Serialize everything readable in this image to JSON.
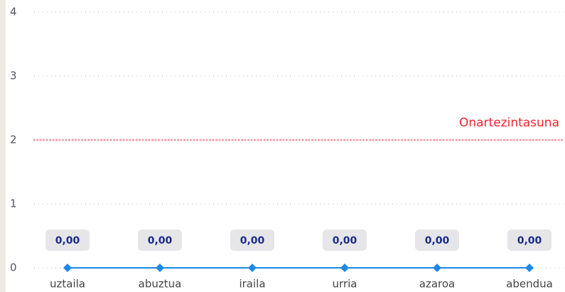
{
  "chart_data": {
    "type": "line",
    "categories": [
      "uztaila",
      "abuztua",
      "iraila",
      "urria",
      "azaroa",
      "abendua"
    ],
    "series": [
      {
        "color": "#1e88e5",
        "values": [
          0,
          0,
          0,
          0,
          0,
          0
        ],
        "value_labels": [
          "0,00",
          "0,00",
          "0,00",
          "0,00",
          "0,00",
          "0,00"
        ]
      }
    ],
    "ylim": [
      0,
      4
    ],
    "yticks": [
      0,
      1,
      2,
      3,
      4
    ],
    "grid": true,
    "threshold": {
      "value": 2,
      "label": "Onartezintasuna",
      "color": "#f0232d"
    }
  }
}
